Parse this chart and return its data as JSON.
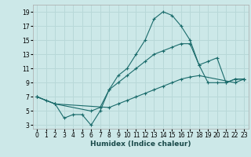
{
  "xlabel": "Humidex (Indice chaleur)",
  "bg_color": "#cce8e8",
  "grid_color": "#b8d8d8",
  "line_color": "#1a6b6b",
  "xlim": [
    -0.5,
    23.5
  ],
  "ylim": [
    2.5,
    20
  ],
  "xticks": [
    0,
    1,
    2,
    3,
    4,
    5,
    6,
    7,
    8,
    9,
    10,
    11,
    12,
    13,
    14,
    15,
    16,
    17,
    18,
    19,
    20,
    21,
    22,
    23
  ],
  "yticks": [
    3,
    5,
    7,
    9,
    11,
    13,
    15,
    17,
    19
  ],
  "curve1_x": [
    0,
    1,
    2,
    3,
    4,
    5,
    6,
    7,
    8,
    9,
    10,
    11,
    12,
    13,
    14,
    15,
    16,
    17,
    18,
    19,
    20,
    21,
    22,
    23
  ],
  "curve1_y": [
    7,
    6.5,
    6,
    4,
    4.5,
    4.5,
    3,
    5,
    8,
    10,
    11,
    13,
    15,
    18,
    19,
    18.5,
    17,
    15,
    11.5,
    12,
    12.5,
    9,
    9.5,
    9.5
  ],
  "curve2_x": [
    0,
    2,
    6,
    7,
    8,
    9,
    10,
    11,
    12,
    13,
    14,
    15,
    16,
    17,
    18,
    19,
    20,
    21,
    22,
    23
  ],
  "curve2_y": [
    7,
    6,
    5,
    5.5,
    8,
    9,
    10,
    11,
    12,
    13,
    13.5,
    14,
    14.5,
    14.5,
    11.5,
    9,
    9,
    9,
    9.5,
    9.5
  ],
  "curve3_x": [
    0,
    2,
    8,
    9,
    10,
    11,
    12,
    13,
    14,
    15,
    16,
    17,
    18,
    22,
    23
  ],
  "curve3_y": [
    7,
    6,
    5.5,
    6,
    6.5,
    7,
    7.5,
    8,
    8.5,
    9,
    9.5,
    9.8,
    10,
    9,
    9.5
  ]
}
